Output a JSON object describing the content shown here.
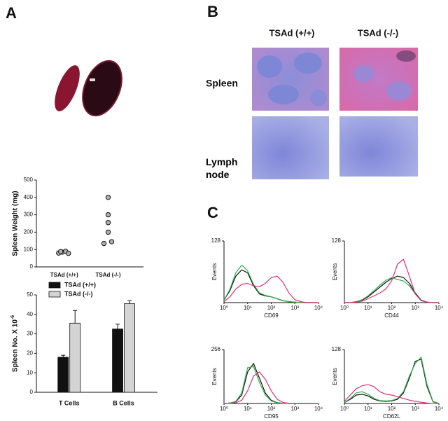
{
  "panel_labels": [
    "A",
    "B",
    "C"
  ],
  "histology": {
    "columns": [
      "TSAd (+/+)",
      "TSAd (-/-)"
    ],
    "rows": [
      "Spleen",
      "Lymph node"
    ]
  },
  "chart_data": [
    {
      "type": "scatter",
      "y_label": "Spleen Weight (mg)",
      "categories": [
        "TSAd (+/+)",
        "TSAd (-/-)"
      ],
      "values": [
        [
          80,
          85,
          90,
          78,
          88
        ],
        [
          400,
          300,
          255,
          200,
          145,
          135
        ]
      ],
      "color": "#b0b0b0",
      "ylim": [
        0,
        500
      ],
      "yticks": [
        0,
        100,
        200,
        300,
        400,
        500
      ]
    },
    {
      "type": "bar",
      "y_label": "Spleen No. X 10",
      "y_label_exponent": "-6",
      "categories": [
        "T Cells",
        "B Cells"
      ],
      "series": [
        {
          "name": "TSAd (+/+)",
          "color": "#111111",
          "values": [
            18,
            32.5
          ],
          "errors": [
            1,
            2.5
          ]
        },
        {
          "name": "TSAd (-/-)",
          "color": "#d4d4d4",
          "values": [
            35.5,
            45.5
          ],
          "errors": [
            6.5,
            1.5
          ]
        }
      ],
      "ylim": [
        0,
        50
      ],
      "yticks": [
        0,
        10,
        20,
        30,
        40,
        50
      ]
    },
    {
      "type": "line",
      "x_log": true,
      "x_label": "CD69",
      "y_label": "Events",
      "x": [
        1,
        1.78,
        3.16,
        5.62,
        10,
        17.8,
        31.6,
        56.2,
        100,
        178,
        316,
        562,
        1000,
        1780,
        3160,
        5620,
        10000
      ],
      "series": [
        {
          "color": "#111111",
          "values": [
            5,
            25,
            55,
            68,
            62,
            35,
            18,
            14,
            12,
            8,
            4,
            2,
            1,
            0,
            0,
            0,
            0
          ]
        },
        {
          "color": "#2db34a",
          "values": [
            5,
            28,
            62,
            78,
            66,
            38,
            20,
            15,
            12,
            8,
            4,
            2,
            1,
            0,
            0,
            0,
            0
          ]
        },
        {
          "color": "#e0307a",
          "values": [
            2,
            12,
            28,
            38,
            40,
            35,
            33,
            40,
            52,
            55,
            42,
            20,
            6,
            2,
            0,
            0,
            0
          ]
        }
      ],
      "xlim": [
        1,
        10000
      ],
      "xticks": [
        {
          "value": 1,
          "label": "10⁰"
        },
        {
          "value": 10,
          "label": "10¹"
        },
        {
          "value": 100,
          "label": "10²"
        },
        {
          "value": 1000,
          "label": "10³"
        },
        {
          "value": 10000,
          "label": "10⁴"
        }
      ],
      "ylim": [
        0,
        128
      ],
      "yticks": [
        128
      ]
    },
    {
      "type": "line",
      "x_log": true,
      "x_label": "CD44",
      "y_label": "Events",
      "x": [
        1,
        1.78,
        3.16,
        5.62,
        10,
        17.8,
        31.6,
        56.2,
        100,
        178,
        316,
        562,
        1000,
        1780,
        3160,
        5620,
        10000
      ],
      "series": [
        {
          "color": "#111111",
          "values": [
            0,
            0,
            2,
            5,
            12,
            22,
            32,
            42,
            50,
            55,
            52,
            40,
            20,
            5,
            1,
            0,
            0
          ]
        },
        {
          "color": "#2db34a",
          "values": [
            0,
            0,
            2,
            6,
            14,
            25,
            36,
            46,
            52,
            48,
            45,
            35,
            18,
            4,
            1,
            0,
            0
          ]
        },
        {
          "color": "#e0307a",
          "values": [
            0,
            0,
            1,
            3,
            8,
            14,
            20,
            28,
            45,
            80,
            90,
            55,
            18,
            4,
            1,
            0,
            0
          ]
        }
      ],
      "xlim": [
        1,
        10000
      ],
      "xticks": [
        {
          "value": 1,
          "label": "10⁰"
        },
        {
          "value": 10,
          "label": "10¹"
        },
        {
          "value": 100,
          "label": "10²"
        },
        {
          "value": 1000,
          "label": "10³"
        },
        {
          "value": 10000,
          "label": "10⁴"
        }
      ],
      "ylim": [
        0,
        128
      ],
      "yticks": [
        128
      ]
    },
    {
      "type": "line",
      "x_log": true,
      "x_label": "CD95",
      "y_label": "Events",
      "x": [
        1,
        1.78,
        3.16,
        5.62,
        10,
        17.8,
        31.6,
        56.2,
        100,
        178,
        316,
        562,
        1000,
        1780,
        3160,
        5620,
        10000
      ],
      "series": [
        {
          "color": "#111111",
          "values": [
            0,
            2,
            8,
            40,
            150,
            190,
            120,
            50,
            15,
            4,
            1,
            0,
            0,
            0,
            0,
            0,
            0
          ]
        },
        {
          "color": "#2db34a",
          "values": [
            0,
            2,
            10,
            50,
            170,
            175,
            100,
            40,
            12,
            3,
            1,
            0,
            0,
            0,
            0,
            0,
            0
          ]
        },
        {
          "color": "#e0307a",
          "values": [
            0,
            1,
            4,
            15,
            60,
            130,
            150,
            115,
            60,
            20,
            5,
            1,
            0,
            0,
            0,
            0,
            0
          ]
        }
      ],
      "xlim": [
        1,
        10000
      ],
      "xticks": [
        {
          "value": 1,
          "label": "10⁰"
        },
        {
          "value": 10,
          "label": "10¹"
        },
        {
          "value": 100,
          "label": "10²"
        },
        {
          "value": 1000,
          "label": "10³"
        },
        {
          "value": 10000,
          "label": "10⁴"
        }
      ],
      "ylim": [
        0,
        256
      ],
      "yticks": [
        256
      ]
    },
    {
      "type": "line",
      "x_log": true,
      "x_label": "CD62L",
      "y_label": "Events",
      "x": [
        1,
        1.78,
        3.16,
        5.62,
        10,
        17.8,
        31.6,
        56.2,
        100,
        178,
        316,
        562,
        1000,
        1780,
        3160,
        5620,
        10000
      ],
      "series": [
        {
          "color": "#111111",
          "values": [
            2,
            10,
            20,
            22,
            18,
            10,
            6,
            5,
            6,
            10,
            25,
            60,
            100,
            105,
            40,
            4,
            0
          ]
        },
        {
          "color": "#2db34a",
          "values": [
            2,
            12,
            25,
            28,
            22,
            12,
            7,
            6,
            7,
            12,
            28,
            65,
            95,
            110,
            45,
            5,
            0
          ]
        },
        {
          "color": "#e0307a",
          "values": [
            5,
            20,
            35,
            42,
            45,
            40,
            28,
            22,
            20,
            16,
            12,
            8,
            5,
            3,
            1,
            0,
            0
          ]
        }
      ],
      "xlim": [
        1,
        10000
      ],
      "xticks": [
        {
          "value": 1,
          "label": "10⁰"
        },
        {
          "value": 10,
          "label": "10¹"
        },
        {
          "value": 100,
          "label": "10²"
        },
        {
          "value": 1000,
          "label": "10³"
        },
        {
          "value": 10000,
          "label": "10⁴"
        }
      ],
      "ylim": [
        0,
        128
      ],
      "yticks": [
        128
      ]
    }
  ]
}
